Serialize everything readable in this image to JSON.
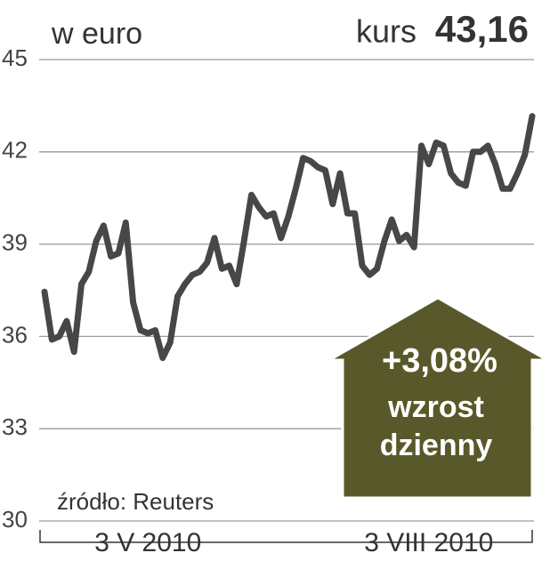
{
  "chart_data": {
    "type": "line",
    "title": "w euro",
    "price_label": "kurs",
    "price": "43,16",
    "source": "źródło: Reuters",
    "badge": {
      "change": "+3,08%",
      "line1": "wzrost",
      "line2": "dzienny"
    },
    "categories": [
      null,
      null,
      null,
      null,
      null,
      null,
      null,
      null,
      null,
      null,
      null,
      null,
      null,
      null,
      "3 V 2010",
      null,
      null,
      null,
      null,
      null,
      null,
      null,
      null,
      null,
      null,
      null,
      null,
      null,
      null,
      null,
      null,
      null,
      null,
      null,
      null,
      null,
      null,
      null,
      null,
      null,
      null,
      null,
      null,
      null,
      null,
      null,
      null,
      null,
      null,
      null,
      null,
      null,
      "3 VIII 2010",
      null,
      null,
      null,
      null,
      null,
      null,
      null,
      null,
      null,
      null,
      null,
      null,
      null,
      null
    ],
    "series": [
      {
        "name": "kurs",
        "color": "#474747",
        "values": [
          37.45,
          35.9,
          36.0,
          36.5,
          35.5,
          37.7,
          38.1,
          39.1,
          39.6,
          38.6,
          38.7,
          39.7,
          37.1,
          36.2,
          36.1,
          36.2,
          35.3,
          35.8,
          37.3,
          37.7,
          38.0,
          38.1,
          38.4,
          39.2,
          38.2,
          38.3,
          37.7,
          39.1,
          40.6,
          40.2,
          39.9,
          40.0,
          39.2,
          39.9,
          40.8,
          41.8,
          41.7,
          41.5,
          41.4,
          40.3,
          41.3,
          40.0,
          40.0,
          38.3,
          38.0,
          38.2,
          39.1,
          39.8,
          39.1,
          39.3,
          38.9,
          42.2,
          41.6,
          42.3,
          42.2,
          41.3,
          41.0,
          40.9,
          42.0,
          42.0,
          42.2,
          41.6,
          40.8,
          40.8,
          41.3,
          41.9,
          43.16
        ]
      }
    ],
    "ylim": [
      30,
      45
    ],
    "yticks": [
      30,
      33,
      36,
      39,
      42,
      45
    ],
    "grid": true
  }
}
